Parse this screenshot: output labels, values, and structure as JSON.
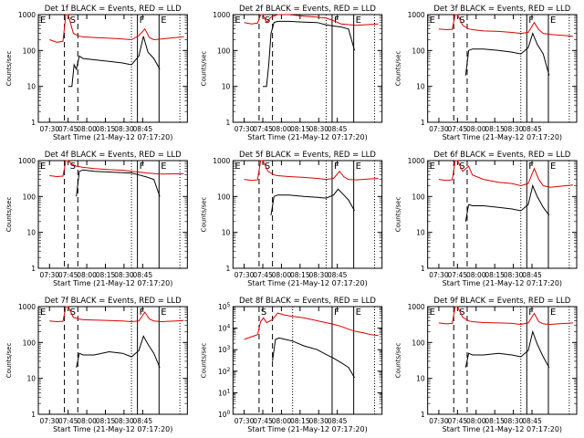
{
  "chart_data": [
    {
      "type": "line",
      "title": "Det 1f BLACK = Events, RED = LLD",
      "xlabel": "Start Time (21-May-12 07:17:20)",
      "ylabel": "Counts/sec",
      "x_ticks": [
        "07:30",
        "07:45",
        "08:00",
        "08:15",
        "08:30",
        "08:45"
      ],
      "y_ticks": [
        "1",
        "10",
        "100",
        "1000"
      ],
      "ylim": [
        1,
        1000
      ],
      "yscale": "log",
      "event_markers": {
        "dashed": [
          7.7,
          7.88
        ],
        "dotted": [
          8.6
        ],
        "solid": [
          8.68,
          8.97
        ],
        "dotted_end": [
          9.25
        ]
      },
      "marker_labels": [
        "E",
        "S",
        "F",
        "E"
      ],
      "series": [
        {
          "name": "BLACK = Events",
          "color": "#000000",
          "x": [
            7.75,
            7.8,
            7.83,
            7.86,
            7.9,
            7.95,
            8.1,
            8.3,
            8.48,
            8.6,
            8.7,
            8.76,
            8.82,
            8.9,
            8.98
          ],
          "y": [
            10,
            10,
            40,
            30,
            70,
            60,
            55,
            50,
            45,
            40,
            70,
            250,
            90,
            60,
            30
          ]
        },
        {
          "name": "RED = LLD",
          "color": "#dd0000",
          "x": [
            7.5,
            7.6,
            7.68,
            7.72,
            7.75,
            7.82,
            7.9,
            7.95,
            8.1,
            8.3,
            8.48,
            8.6,
            8.7,
            8.78,
            8.84,
            8.9,
            9.0,
            9.1,
            9.2,
            9.3
          ],
          "y": [
            200,
            170,
            180,
            1000,
            1000,
            300,
            250,
            240,
            230,
            220,
            210,
            200,
            260,
            400,
            230,
            200,
            210,
            220,
            230,
            240
          ]
        }
      ]
    },
    {
      "type": "line",
      "title": "Det 2f BLACK = Events, RED = LLD",
      "xlabel": "Start Time (21-May-12 07:17:20)",
      "ylabel": "Counts/sec",
      "x_ticks": [
        "07:30",
        "07:45",
        "08:00",
        "08:15",
        "08:30",
        "08:45"
      ],
      "y_ticks": [
        "1",
        "10",
        "100",
        "1000"
      ],
      "ylim": [
        1,
        1000
      ],
      "yscale": "log",
      "event_markers": {
        "dashed": [
          7.7,
          7.88
        ],
        "dotted": [
          8.6
        ],
        "solid": [
          8.68,
          8.97
        ],
        "dotted_end": [
          9.25
        ]
      },
      "marker_labels": [
        "E",
        "S",
        "F",
        "E"
      ],
      "series": [
        {
          "name": "BLACK = Events",
          "color": "#000000",
          "x": [
            7.75,
            7.8,
            7.83,
            7.86,
            7.9,
            7.95,
            8.1,
            8.3,
            8.48,
            8.6,
            8.7,
            8.8,
            8.9,
            8.98
          ],
          "y": [
            10,
            10,
            40,
            300,
            600,
            650,
            650,
            620,
            600,
            520,
            480,
            450,
            400,
            100
          ]
        },
        {
          "name": "RED = LLD",
          "color": "#dd0000",
          "x": [
            7.5,
            7.6,
            7.68,
            7.72,
            7.75,
            7.8,
            7.86,
            7.95,
            8.1,
            8.3,
            8.48,
            8.6,
            8.68,
            8.8,
            9.0,
            9.3
          ],
          "y": [
            600,
            550,
            580,
            1000,
            1000,
            600,
            850,
            1000,
            1000,
            900,
            850,
            800,
            700,
            550,
            500,
            550
          ]
        }
      ]
    },
    {
      "type": "line",
      "title": "Det 3f BLACK = Events, RED = LLD",
      "xlabel": "Start Time (21-May-12 07:17:20)",
      "ylabel": "Counts/sec",
      "x_ticks": [
        "07:30",
        "07:45",
        "08:00",
        "08:15",
        "08:30",
        "08:45"
      ],
      "y_ticks": [
        "1",
        "10",
        "100",
        "1000"
      ],
      "ylim": [
        1,
        1000
      ],
      "yscale": "log",
      "event_markers": {
        "dashed": [
          7.7,
          7.88
        ],
        "dotted": [
          8.6
        ],
        "solid": [
          8.68,
          8.97
        ],
        "dotted_end": [
          9.25
        ]
      },
      "marker_labels": [
        "E",
        "S",
        "F",
        "E"
      ],
      "series": [
        {
          "name": "BLACK = Events",
          "color": "#000000",
          "x": [
            7.86,
            7.9,
            7.95,
            8.1,
            8.3,
            8.48,
            8.6,
            8.7,
            8.76,
            8.82,
            8.9,
            8.98
          ],
          "y": [
            20,
            100,
            110,
            110,
            100,
            90,
            80,
            120,
            300,
            150,
            80,
            20
          ]
        },
        {
          "name": "RED = LLD",
          "color": "#dd0000",
          "x": [
            7.5,
            7.6,
            7.68,
            7.72,
            7.75,
            7.82,
            7.9,
            7.95,
            8.1,
            8.3,
            8.48,
            8.6,
            8.7,
            8.78,
            8.84,
            8.9,
            9.0,
            9.1,
            9.2,
            9.3
          ],
          "y": [
            400,
            380,
            390,
            1000,
            1000,
            500,
            400,
            380,
            350,
            340,
            320,
            300,
            320,
            600,
            380,
            300,
            280,
            270,
            260,
            250
          ]
        }
      ]
    },
    {
      "type": "line",
      "title": "Det 4f BLACK = Events, RED = LLD",
      "xlabel": "Start Time (21-May-12 07:17:20)",
      "ylabel": "Counts/sec",
      "x_ticks": [
        "07:30",
        "07:45",
        "08:00",
        "08:15",
        "08:30",
        "08:45"
      ],
      "y_ticks": [
        "1",
        "10",
        "100",
        "1000"
      ],
      "ylim": [
        1,
        1000
      ],
      "yscale": "log",
      "event_markers": {
        "dashed": [
          7.7,
          7.88
        ],
        "dotted": [
          8.6
        ],
        "solid": [
          8.68,
          8.97
        ],
        "dotted_end": [
          9.25
        ]
      },
      "marker_labels": [
        "E",
        "S",
        "F",
        "E"
      ],
      "series": [
        {
          "name": "BLACK = Events",
          "color": "#000000",
          "x": [
            7.86,
            7.9,
            7.95,
            8.1,
            8.3,
            8.48,
            8.6,
            8.7,
            8.8,
            8.9,
            8.98
          ],
          "y": [
            100,
            500,
            550,
            500,
            480,
            460,
            450,
            400,
            350,
            300,
            100
          ]
        },
        {
          "name": "RED = LLD",
          "color": "#dd0000",
          "x": [
            7.5,
            7.6,
            7.68,
            7.72,
            7.75,
            7.8,
            7.86,
            7.95,
            8.1,
            8.3,
            8.48,
            8.6,
            8.7,
            8.8,
            9.0,
            9.3
          ],
          "y": [
            380,
            360,
            370,
            1000,
            1000,
            800,
            700,
            650,
            600,
            560,
            540,
            500,
            480,
            450,
            420,
            430
          ]
        }
      ]
    },
    {
      "type": "line",
      "title": "Det 5f BLACK = Events, RED = LLD",
      "xlabel": "Start Time (21-May-12 07:17:20)",
      "ylabel": "Counts/sec",
      "x_ticks": [
        "07:30",
        "07:45",
        "08:00",
        "08:15",
        "08:30",
        "08:45"
      ],
      "y_ticks": [
        "1",
        "10",
        "100",
        "1000"
      ],
      "ylim": [
        1,
        1000
      ],
      "yscale": "log",
      "event_markers": {
        "dashed": [
          7.7,
          7.88
        ],
        "dotted": [
          8.6
        ],
        "solid": [
          8.68,
          8.97
        ],
        "dotted_end": [
          9.25
        ]
      },
      "marker_labels": [
        "E",
        "S",
        "F",
        "E"
      ],
      "series": [
        {
          "name": "BLACK = Events",
          "color": "#000000",
          "x": [
            7.86,
            7.9,
            7.95,
            8.1,
            8.3,
            8.48,
            8.6,
            8.7,
            8.76,
            8.82,
            8.9,
            8.98
          ],
          "y": [
            30,
            100,
            110,
            110,
            100,
            95,
            90,
            110,
            160,
            120,
            80,
            40
          ]
        },
        {
          "name": "RED = LLD",
          "color": "#dd0000",
          "x": [
            7.5,
            7.6,
            7.68,
            7.72,
            7.75,
            7.82,
            7.9,
            7.95,
            8.1,
            8.3,
            8.48,
            8.6,
            8.7,
            8.78,
            8.84,
            8.9,
            9.0,
            9.1,
            9.2,
            9.3
          ],
          "y": [
            300,
            280,
            290,
            1000,
            1000,
            500,
            400,
            380,
            360,
            340,
            320,
            300,
            320,
            500,
            350,
            300,
            290,
            300,
            310,
            320
          ]
        }
      ]
    },
    {
      "type": "line",
      "title": "Det 6f BLACK = Events, RED = LLD",
      "xlabel": "Start Time (21-May-12 07:17:20)",
      "ylabel": "Counts/sec",
      "x_ticks": [
        "07:30",
        "07:45",
        "08:00",
        "08:15",
        "08:30",
        "08:45"
      ],
      "y_ticks": [
        "1",
        "10",
        "100",
        "1000"
      ],
      "ylim": [
        1,
        1000
      ],
      "yscale": "log",
      "event_markers": {
        "dashed": [
          7.7,
          7.88
        ],
        "dotted": [
          8.6
        ],
        "solid": [
          8.68,
          8.97
        ],
        "dotted_end": [
          9.25
        ]
      },
      "marker_labels": [
        "E",
        "S",
        "F",
        "E"
      ],
      "series": [
        {
          "name": "BLACK = Events",
          "color": "#000000",
          "x": [
            7.86,
            7.9,
            7.95,
            8.1,
            8.3,
            8.48,
            8.6,
            8.7,
            8.76,
            8.82,
            8.9,
            8.98
          ],
          "y": [
            20,
            60,
            55,
            55,
            50,
            45,
            40,
            60,
            200,
            100,
            50,
            30
          ]
        },
        {
          "name": "RED = LLD",
          "color": "#dd0000",
          "x": [
            7.5,
            7.6,
            7.68,
            7.72,
            7.75,
            7.82,
            7.9,
            7.95,
            8.1,
            8.3,
            8.48,
            8.6,
            8.7,
            8.78,
            8.84,
            8.9,
            9.0,
            9.1,
            9.2,
            9.3
          ],
          "y": [
            300,
            280,
            290,
            1000,
            1000,
            500,
            700,
            400,
            300,
            250,
            230,
            200,
            230,
            600,
            300,
            200,
            180,
            190,
            200,
            210
          ]
        }
      ]
    },
    {
      "type": "line",
      "title": "Det 7f BLACK = Events, RED = LLD",
      "xlabel": "Start Time (21-May-12 07:17:20)",
      "ylabel": "Counts/sec",
      "x_ticks": [
        "07:30",
        "07:45",
        "08:00",
        "08:15",
        "08:30",
        "08:45"
      ],
      "y_ticks": [
        "1",
        "10",
        "100",
        "1000"
      ],
      "ylim": [
        1,
        1000
      ],
      "yscale": "log",
      "event_markers": {
        "dashed": [
          7.7,
          7.88
        ],
        "dotted": [
          8.6
        ],
        "solid": [
          8.68,
          8.97
        ],
        "dotted_end": [
          9.25
        ]
      },
      "marker_labels": [
        "E",
        "S",
        "F",
        "E"
      ],
      "series": [
        {
          "name": "BLACK = Events",
          "color": "#000000",
          "x": [
            7.86,
            7.9,
            7.95,
            8.1,
            8.3,
            8.48,
            8.6,
            8.7,
            8.76,
            8.82,
            8.9,
            8.98
          ],
          "y": [
            20,
            50,
            45,
            45,
            55,
            50,
            40,
            60,
            150,
            90,
            50,
            20
          ]
        },
        {
          "name": "RED = LLD",
          "color": "#dd0000",
          "x": [
            7.5,
            7.6,
            7.68,
            7.72,
            7.75,
            7.82,
            7.9,
            7.95,
            8.1,
            8.3,
            8.48,
            8.6,
            8.7,
            8.78,
            8.84,
            8.9,
            9.0,
            9.1,
            9.2,
            9.3
          ],
          "y": [
            400,
            380,
            390,
            1000,
            1000,
            500,
            450,
            430,
            420,
            410,
            400,
            380,
            400,
            700,
            450,
            400,
            380,
            390,
            400,
            410
          ]
        }
      ]
    },
    {
      "type": "line",
      "title": "Det 8f BLACK = Events, RED = LLD",
      "xlabel": "Start Time (21-May-12 07:17:20)",
      "ylabel": "Counts/sec",
      "x_ticks": [
        "07:30",
        "07:45",
        "08:00",
        "08:15",
        "08:30",
        "08:45"
      ],
      "y_ticks": [
        "10^0",
        "10^1",
        "10^2",
        "10^3",
        "10^4",
        "10^5"
      ],
      "ylim": [
        1,
        100000
      ],
      "yscale": "log",
      "event_markers": {
        "dashed": [
          7.7,
          7.88
        ],
        "dotted": [
          8.15
        ],
        "solid": [
          8.68,
          8.97
        ],
        "dotted_end": [
          9.25
        ]
      },
      "marker_labels": [
        "S",
        "F",
        "E"
      ],
      "series": [
        {
          "name": "BLACK = Events",
          "color": "#000000",
          "x": [
            7.88,
            7.92,
            7.97,
            8.05,
            8.15,
            8.3,
            8.48,
            8.6,
            8.7,
            8.8,
            8.9,
            8.98
          ],
          "y": [
            300,
            3000,
            3500,
            3000,
            2500,
            1500,
            1000,
            600,
            400,
            250,
            150,
            50
          ]
        },
        {
          "name": "RED = LLD",
          "color": "#dd0000",
          "x": [
            7.5,
            7.6,
            7.68,
            7.72,
            7.76,
            7.8,
            7.88,
            7.95,
            8.05,
            8.15,
            8.3,
            8.48,
            8.6,
            8.7,
            8.8,
            8.9,
            9.0,
            9.1,
            9.2,
            9.3
          ],
          "y": [
            3000,
            4000,
            5000,
            20000,
            30000,
            18000,
            25000,
            50000,
            40000,
            35000,
            30000,
            22000,
            18000,
            15000,
            12000,
            9000,
            7000,
            6000,
            5000,
            4500
          ]
        }
      ]
    },
    {
      "type": "line",
      "title": "Det 9f BLACK = Events, RED = LLD",
      "xlabel": "Start Time (21-May-12 07:17:20)",
      "ylabel": "Counts/sec",
      "x_ticks": [
        "07:30",
        "07:45",
        "08:00",
        "08:15",
        "08:30",
        "08:45"
      ],
      "y_ticks": [
        "1",
        "10",
        "100",
        "1000"
      ],
      "ylim": [
        1,
        1000
      ],
      "yscale": "log",
      "event_markers": {
        "dashed": [
          7.7,
          7.88
        ],
        "dotted": [
          8.6
        ],
        "solid": [
          8.68,
          8.97
        ],
        "dotted_end": [
          9.25
        ]
      },
      "marker_labels": [
        "E",
        "S",
        "F",
        "E"
      ],
      "series": [
        {
          "name": "BLACK = Events",
          "color": "#000000",
          "x": [
            7.86,
            7.9,
            7.95,
            8.1,
            8.3,
            8.48,
            8.6,
            8.7,
            8.76,
            8.82,
            8.9,
            8.98
          ],
          "y": [
            20,
            50,
            45,
            45,
            50,
            45,
            40,
            60,
            200,
            90,
            40,
            20
          ]
        },
        {
          "name": "RED = LLD",
          "color": "#dd0000",
          "x": [
            7.5,
            7.6,
            7.68,
            7.72,
            7.75,
            7.82,
            7.9,
            7.95,
            8.1,
            8.3,
            8.48,
            8.6,
            8.7,
            8.78,
            8.84,
            8.9,
            9.0,
            9.1,
            9.2,
            9.3
          ],
          "y": [
            350,
            330,
            340,
            1000,
            1000,
            500,
            400,
            380,
            360,
            350,
            340,
            320,
            350,
            650,
            380,
            330,
            320,
            330,
            340,
            350
          ]
        }
      ]
    }
  ]
}
